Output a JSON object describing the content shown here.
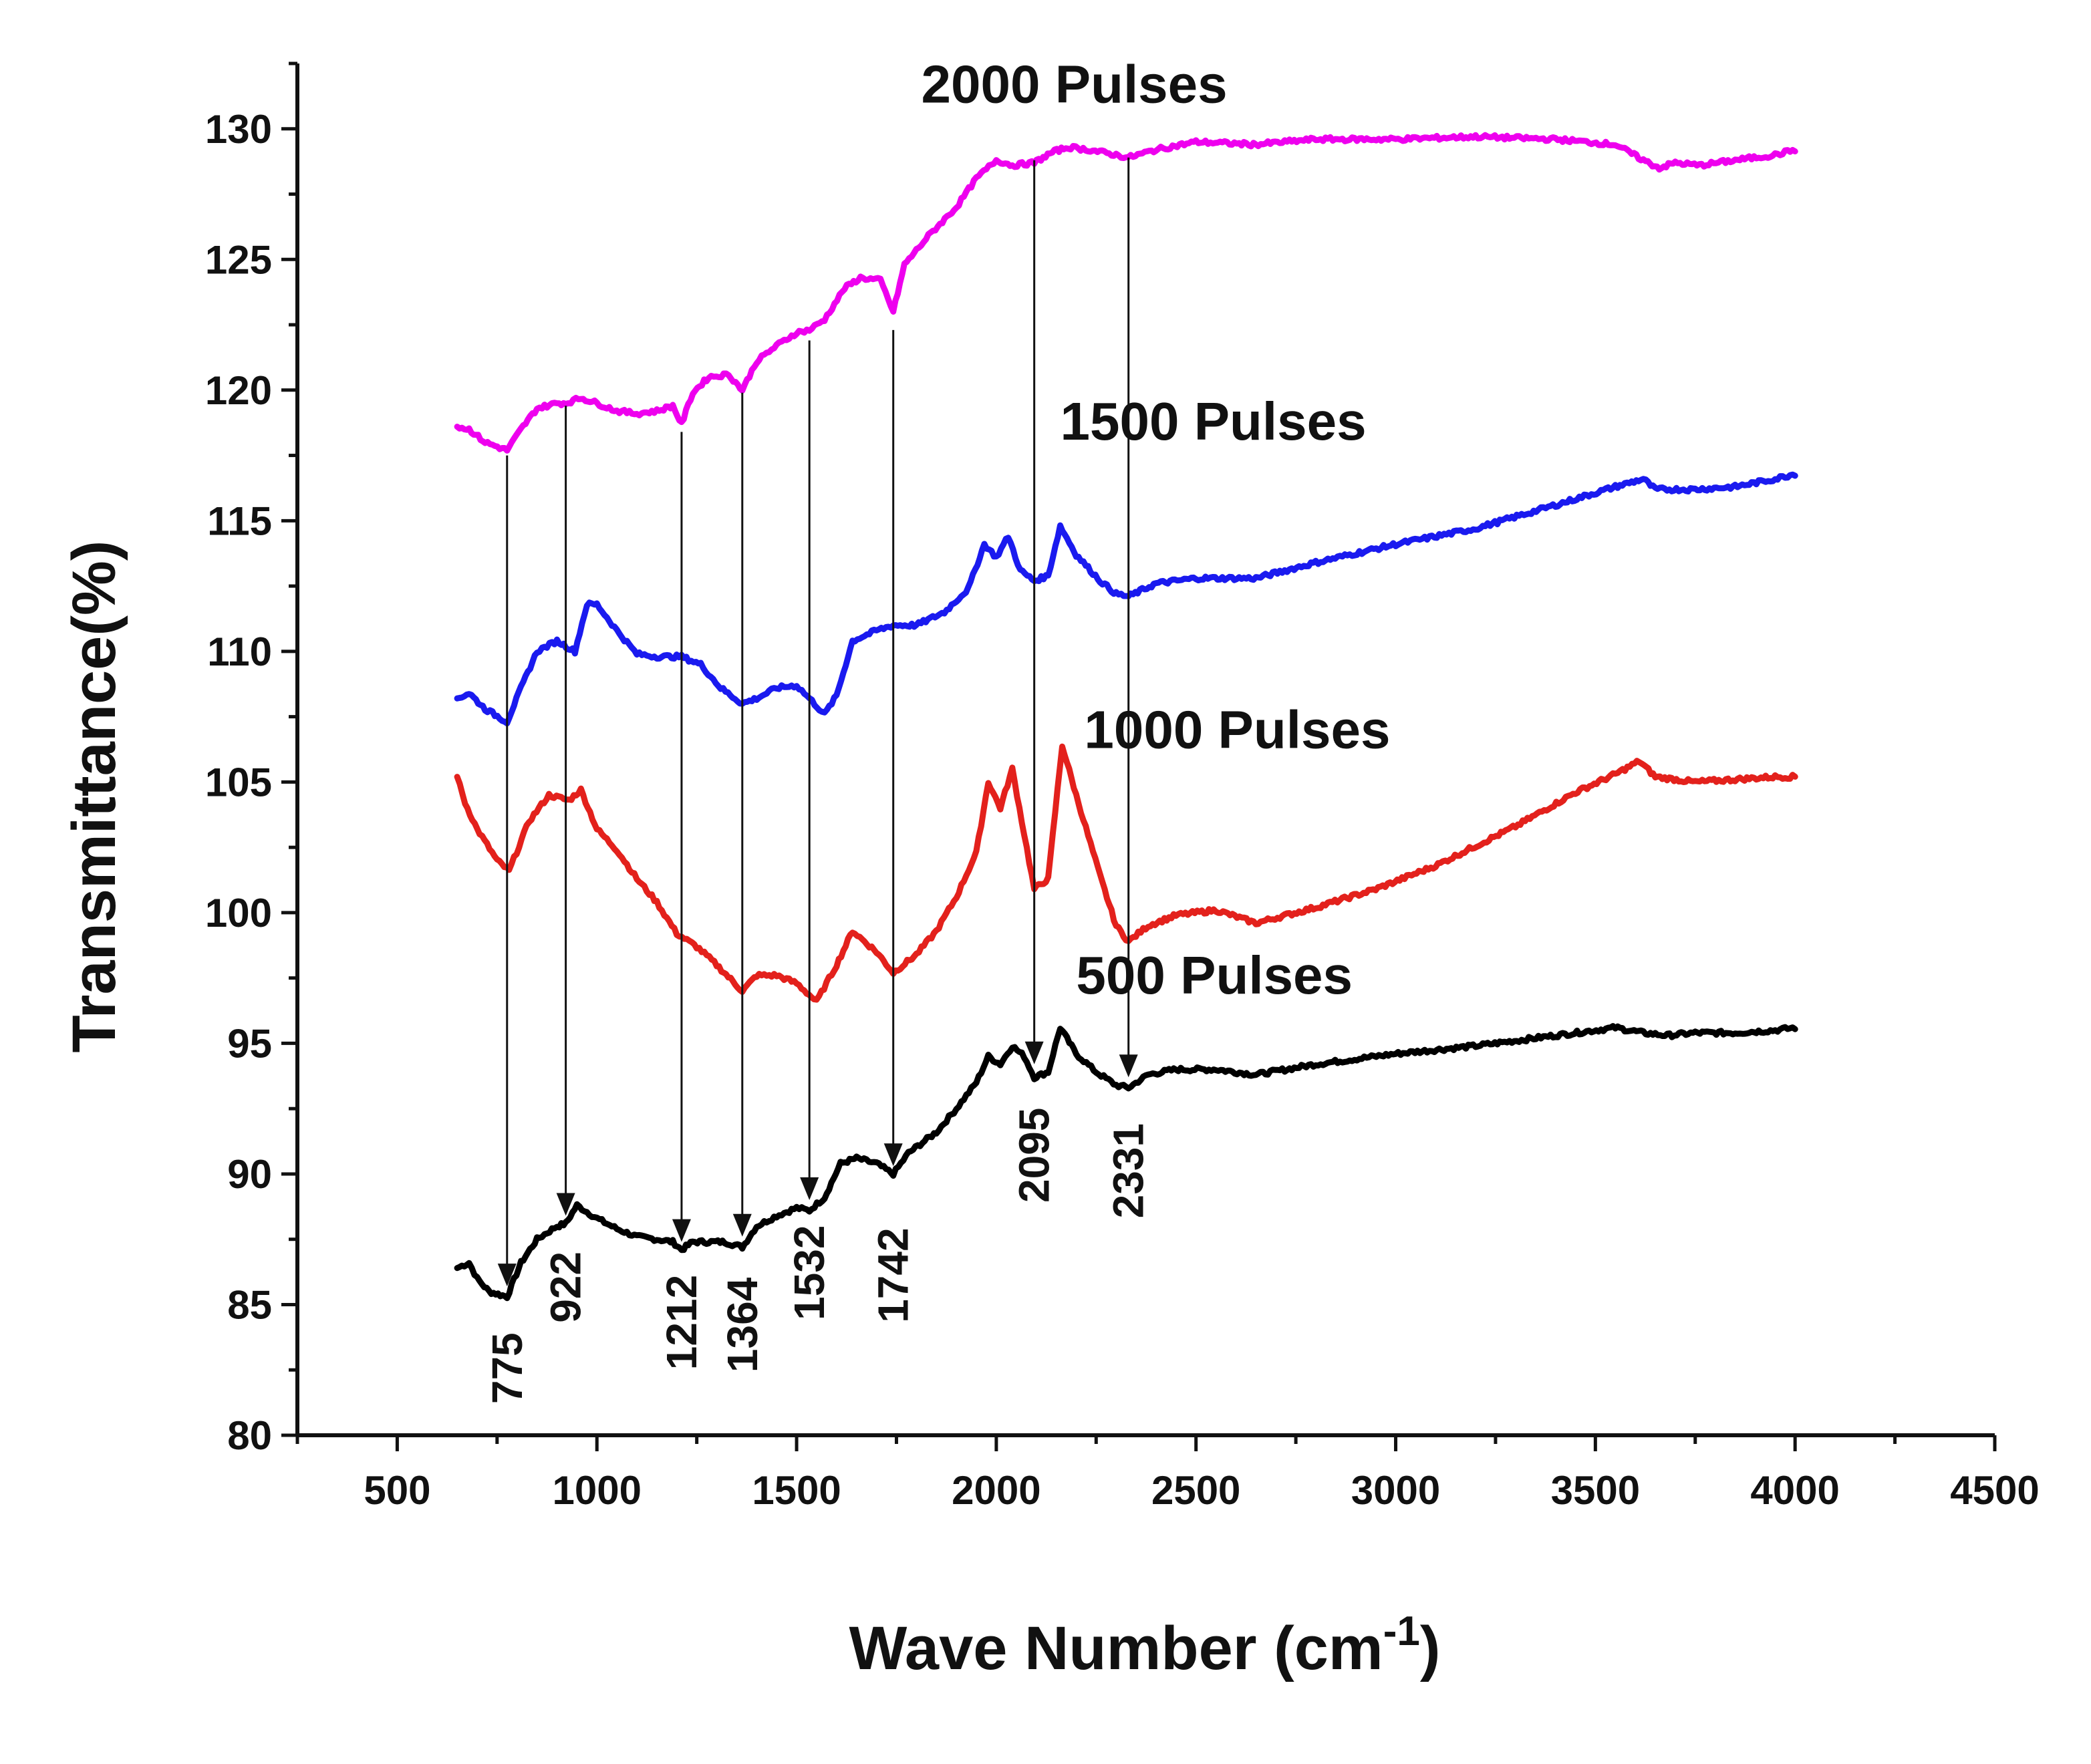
{
  "chart_data": {
    "type": "line",
    "xlabel": "Wave Number (cm",
    "xlabel_sup": "-1",
    "xlabel_close": ")",
    "ylabel": "Transmittance(%)",
    "xlim": [
      250,
      4500
    ],
    "ylim": [
      80,
      132.5
    ],
    "x_ticks": [
      500,
      1000,
      1500,
      2000,
      2500,
      3000,
      3500,
      4000,
      4500
    ],
    "y_ticks": [
      80,
      85,
      90,
      95,
      100,
      105,
      110,
      115,
      120,
      125,
      130
    ],
    "grid": false,
    "series": [
      {
        "name": "500 Pulses",
        "color": "#000000",
        "label_at": [
          2200,
          96.9
        ],
        "points": [
          [
            650,
            86.4
          ],
          [
            680,
            86.6
          ],
          [
            700,
            86.0
          ],
          [
            730,
            85.5
          ],
          [
            775,
            85.3
          ],
          [
            810,
            86.6
          ],
          [
            850,
            87.5
          ],
          [
            900,
            88.0
          ],
          [
            922,
            88.1
          ],
          [
            950,
            88.8
          ],
          [
            1000,
            88.3
          ],
          [
            1050,
            87.9
          ],
          [
            1100,
            87.6
          ],
          [
            1150,
            87.5
          ],
          [
            1190,
            87.4
          ],
          [
            1212,
            87.1
          ],
          [
            1240,
            87.4
          ],
          [
            1280,
            87.4
          ],
          [
            1320,
            87.4
          ],
          [
            1364,
            87.2
          ],
          [
            1400,
            88.0
          ],
          [
            1450,
            88.4
          ],
          [
            1500,
            88.7
          ],
          [
            1532,
            88.6
          ],
          [
            1570,
            89.1
          ],
          [
            1610,
            90.4
          ],
          [
            1650,
            90.6
          ],
          [
            1700,
            90.4
          ],
          [
            1742,
            90.0
          ],
          [
            1780,
            90.8
          ],
          [
            1850,
            91.6
          ],
          [
            1900,
            92.5
          ],
          [
            1950,
            93.5
          ],
          [
            1980,
            94.5
          ],
          [
            2010,
            94.2
          ],
          [
            2040,
            94.9
          ],
          [
            2070,
            94.5
          ],
          [
            2095,
            93.7
          ],
          [
            2130,
            93.9
          ],
          [
            2160,
            95.6
          ],
          [
            2200,
            94.6
          ],
          [
            2250,
            93.9
          ],
          [
            2300,
            93.4
          ],
          [
            2331,
            93.3
          ],
          [
            2380,
            93.8
          ],
          [
            2450,
            94.0
          ],
          [
            2550,
            94.0
          ],
          [
            2650,
            93.8
          ],
          [
            2800,
            94.2
          ],
          [
            3000,
            94.6
          ],
          [
            3200,
            94.9
          ],
          [
            3400,
            95.3
          ],
          [
            3550,
            95.6
          ],
          [
            3620,
            95.4
          ],
          [
            3680,
            95.3
          ],
          [
            3750,
            95.4
          ],
          [
            3850,
            95.4
          ],
          [
            3950,
            95.5
          ],
          [
            4000,
            95.6
          ]
        ]
      },
      {
        "name": "1000 Pulses",
        "color": "#e3211c",
        "label_at": [
          2220,
          106.3
        ],
        "points": [
          [
            650,
            105.2
          ],
          [
            670,
            104.2
          ],
          [
            700,
            103.2
          ],
          [
            750,
            102.0
          ],
          [
            780,
            101.6
          ],
          [
            830,
            103.5
          ],
          [
            880,
            104.5
          ],
          [
            930,
            104.3
          ],
          [
            960,
            104.7
          ],
          [
            1000,
            103.2
          ],
          [
            1050,
            102.4
          ],
          [
            1100,
            101.3
          ],
          [
            1150,
            100.4
          ],
          [
            1200,
            99.2
          ],
          [
            1250,
            98.7
          ],
          [
            1300,
            98.0
          ],
          [
            1364,
            97.0
          ],
          [
            1400,
            97.6
          ],
          [
            1450,
            97.6
          ],
          [
            1500,
            97.3
          ],
          [
            1550,
            96.6
          ],
          [
            1600,
            98.0
          ],
          [
            1640,
            99.3
          ],
          [
            1700,
            98.5
          ],
          [
            1742,
            97.7
          ],
          [
            1800,
            98.4
          ],
          [
            1850,
            99.3
          ],
          [
            1900,
            100.6
          ],
          [
            1950,
            102.3
          ],
          [
            1980,
            105.0
          ],
          [
            2010,
            104.0
          ],
          [
            2040,
            105.5
          ],
          [
            2070,
            103.0
          ],
          [
            2095,
            100.9
          ],
          [
            2130,
            101.3
          ],
          [
            2165,
            106.4
          ],
          [
            2200,
            104.5
          ],
          [
            2260,
            101.4
          ],
          [
            2300,
            99.5
          ],
          [
            2331,
            98.9
          ],
          [
            2380,
            99.5
          ],
          [
            2450,
            99.9
          ],
          [
            2550,
            100.1
          ],
          [
            2650,
            99.6
          ],
          [
            2800,
            100.2
          ],
          [
            2950,
            100.9
          ],
          [
            3100,
            101.8
          ],
          [
            3300,
            103.3
          ],
          [
            3450,
            104.6
          ],
          [
            3550,
            105.3
          ],
          [
            3610,
            105.8
          ],
          [
            3650,
            105.2
          ],
          [
            3750,
            105.0
          ],
          [
            3850,
            105.1
          ],
          [
            3950,
            105.2
          ],
          [
            4000,
            105.2
          ]
        ]
      },
      {
        "name": "1500 Pulses",
        "color": "#1a1aef",
        "label_at": [
          2160,
          118.1
        ],
        "points": [
          [
            650,
            108.2
          ],
          [
            680,
            108.4
          ],
          [
            720,
            107.8
          ],
          [
            775,
            107.3
          ],
          [
            810,
            108.6
          ],
          [
            850,
            110.0
          ],
          [
            900,
            110.4
          ],
          [
            945,
            110.0
          ],
          [
            975,
            111.8
          ],
          [
            1000,
            111.8
          ],
          [
            1050,
            110.8
          ],
          [
            1100,
            109.9
          ],
          [
            1150,
            109.8
          ],
          [
            1212,
            109.8
          ],
          [
            1260,
            109.5
          ],
          [
            1310,
            108.6
          ],
          [
            1364,
            108.0
          ],
          [
            1400,
            108.2
          ],
          [
            1450,
            108.6
          ],
          [
            1500,
            108.7
          ],
          [
            1532,
            108.2
          ],
          [
            1570,
            107.6
          ],
          [
            1600,
            108.3
          ],
          [
            1640,
            110.4
          ],
          [
            1700,
            110.8
          ],
          [
            1742,
            111.0
          ],
          [
            1800,
            111.0
          ],
          [
            1870,
            111.5
          ],
          [
            1930,
            112.4
          ],
          [
            1970,
            114.1
          ],
          [
            2000,
            113.6
          ],
          [
            2030,
            114.4
          ],
          [
            2060,
            113.1
          ],
          [
            2095,
            112.7
          ],
          [
            2130,
            112.9
          ],
          [
            2160,
            114.8
          ],
          [
            2200,
            113.7
          ],
          [
            2260,
            112.7
          ],
          [
            2300,
            112.2
          ],
          [
            2331,
            112.1
          ],
          [
            2400,
            112.6
          ],
          [
            2500,
            112.8
          ],
          [
            2650,
            112.8
          ],
          [
            2800,
            113.4
          ],
          [
            3000,
            114.1
          ],
          [
            3200,
            114.7
          ],
          [
            3400,
            115.6
          ],
          [
            3550,
            116.3
          ],
          [
            3620,
            116.6
          ],
          [
            3650,
            116.2
          ],
          [
            3750,
            116.2
          ],
          [
            3850,
            116.3
          ],
          [
            3950,
            116.6
          ],
          [
            4000,
            116.8
          ]
        ]
      },
      {
        "name": "2000 Pulses",
        "color": "#ee00ee",
        "label_at": [
          1812,
          131.0
        ],
        "points": [
          [
            650,
            118.6
          ],
          [
            680,
            118.5
          ],
          [
            720,
            118.0
          ],
          [
            775,
            117.7
          ],
          [
            810,
            118.5
          ],
          [
            850,
            119.3
          ],
          [
            900,
            119.5
          ],
          [
            922,
            119.5
          ],
          [
            960,
            119.7
          ],
          [
            1000,
            119.5
          ],
          [
            1050,
            119.2
          ],
          [
            1100,
            119.1
          ],
          [
            1150,
            119.2
          ],
          [
            1190,
            119.4
          ],
          [
            1212,
            118.7
          ],
          [
            1240,
            119.9
          ],
          [
            1280,
            120.5
          ],
          [
            1330,
            120.6
          ],
          [
            1364,
            120.0
          ],
          [
            1400,
            121.1
          ],
          [
            1450,
            121.7
          ],
          [
            1500,
            122.2
          ],
          [
            1532,
            122.3
          ],
          [
            1570,
            122.7
          ],
          [
            1620,
            123.9
          ],
          [
            1660,
            124.3
          ],
          [
            1710,
            124.2
          ],
          [
            1742,
            123.0
          ],
          [
            1770,
            124.8
          ],
          [
            1830,
            125.9
          ],
          [
            1900,
            127.0
          ],
          [
            1950,
            128.1
          ],
          [
            2000,
            128.8
          ],
          [
            2040,
            128.6
          ],
          [
            2095,
            128.7
          ],
          [
            2140,
            129.1
          ],
          [
            2180,
            129.3
          ],
          [
            2230,
            129.2
          ],
          [
            2300,
            129.0
          ],
          [
            2331,
            128.9
          ],
          [
            2400,
            129.2
          ],
          [
            2500,
            129.5
          ],
          [
            2650,
            129.4
          ],
          [
            2800,
            129.6
          ],
          [
            3000,
            129.6
          ],
          [
            3200,
            129.7
          ],
          [
            3400,
            129.6
          ],
          [
            3550,
            129.4
          ],
          [
            3620,
            128.8
          ],
          [
            3660,
            128.5
          ],
          [
            3700,
            128.7
          ],
          [
            3760,
            128.6
          ],
          [
            3850,
            128.8
          ],
          [
            3950,
            129.0
          ],
          [
            4000,
            129.2
          ]
        ]
      }
    ],
    "annotations": [
      {
        "label": "775",
        "x": 775,
        "from_y": 117.5,
        "to_y": 85.7,
        "text_y": 81.2
      },
      {
        "label": "922",
        "x": 922,
        "from_y": 119.4,
        "to_y": 88.4,
        "text_y": 84.3
      },
      {
        "label": "1212",
        "x": 1212,
        "from_y": 118.4,
        "to_y": 87.4,
        "text_y": 82.5
      },
      {
        "label": "1364",
        "x": 1364,
        "from_y": 119.9,
        "to_y": 87.6,
        "text_y": 82.4
      },
      {
        "label": "1532",
        "x": 1532,
        "from_y": 121.9,
        "to_y": 89.0,
        "text_y": 84.4
      },
      {
        "label": "1742",
        "x": 1742,
        "from_y": 122.3,
        "to_y": 90.3,
        "text_y": 84.3
      },
      {
        "label": "2095",
        "x": 2095,
        "from_y": 128.8,
        "to_y": 94.2,
        "text_y": 88.9
      },
      {
        "label": "2331",
        "x": 2331,
        "from_y": 128.9,
        "to_y": 93.7,
        "text_y": 88.3
      }
    ]
  }
}
